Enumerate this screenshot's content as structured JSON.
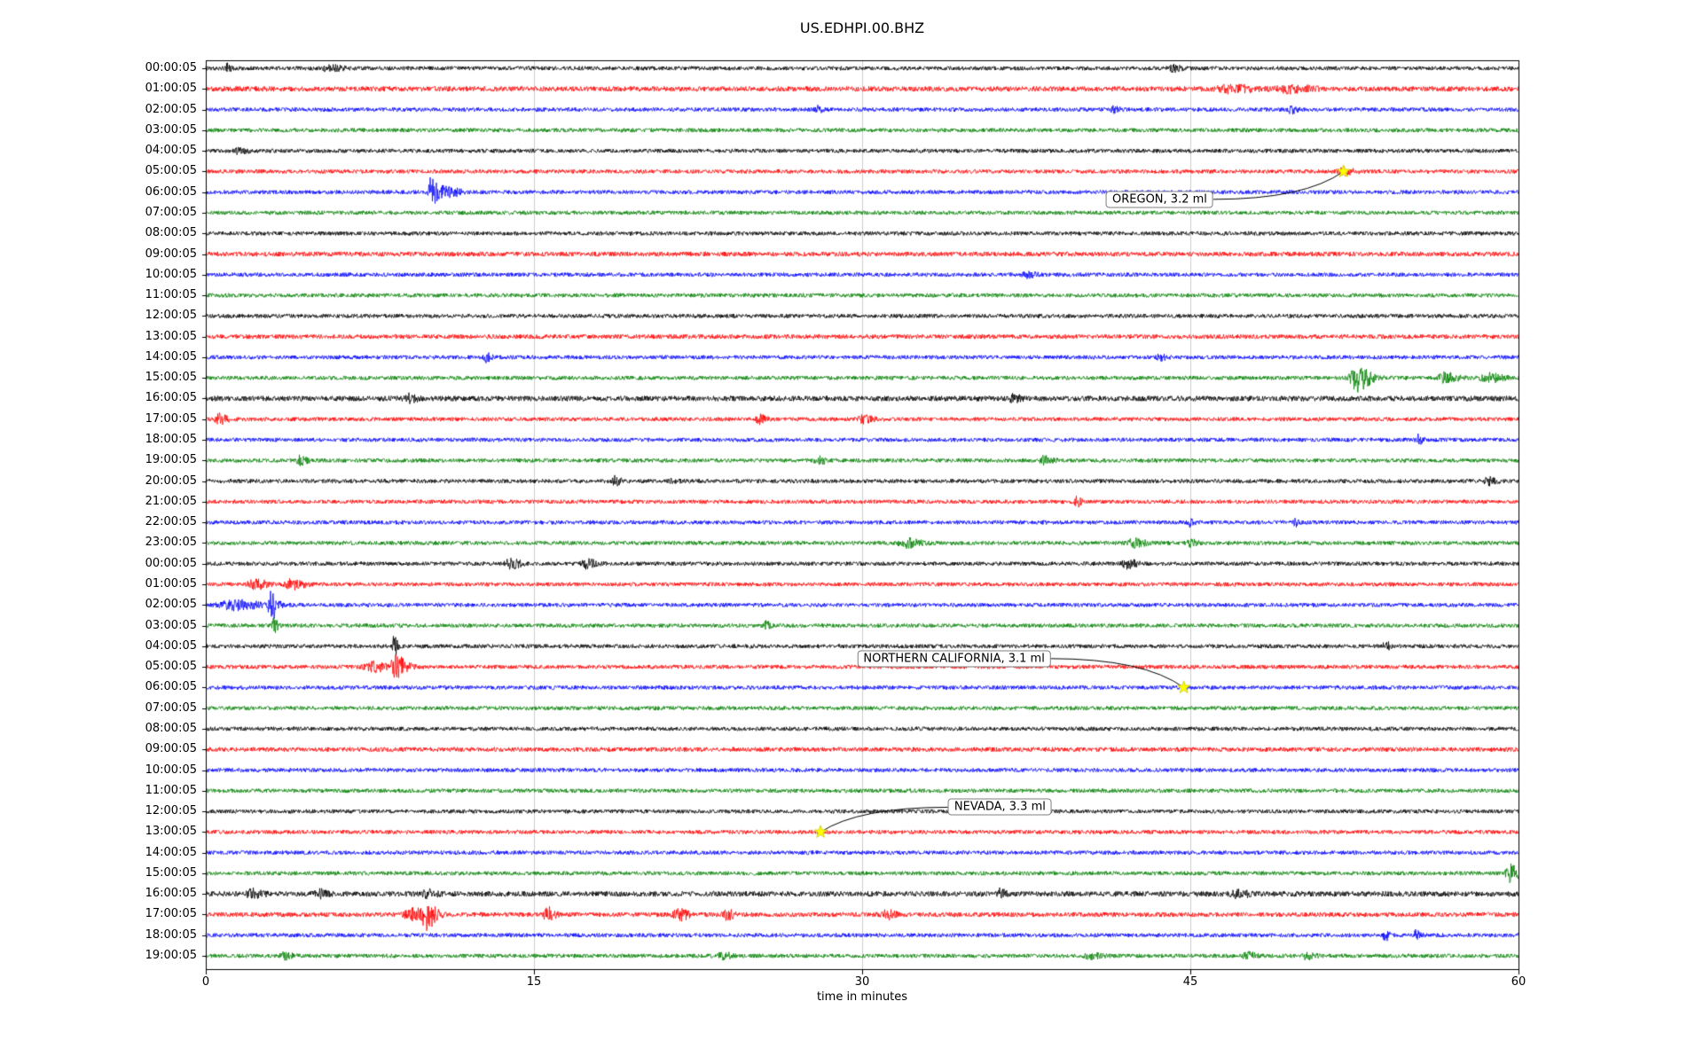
{
  "chart_data": {
    "type": "line",
    "subtype": "seismogram-helicorder-dayplot",
    "title": "US.EDHPI.00.BHZ",
    "xlabel": "time in minutes",
    "x_ticks": [
      0,
      15,
      30,
      45,
      60
    ],
    "x_range_minutes": [
      0,
      60
    ],
    "grid_minutes": [
      15,
      30,
      45
    ],
    "grid_color": "#cdcdcd",
    "background": "#ffffff",
    "colors": {
      "black": "#000000",
      "red": "#ff0000",
      "blue": "#0000ff",
      "green": "#008000"
    },
    "trace_color_cycle": [
      "black",
      "red",
      "blue",
      "green"
    ],
    "rows": [
      {
        "label": "00:00:05",
        "color": "black",
        "amp": 1.0,
        "events": [
          {
            "m": 1.0,
            "a": 7,
            "w": 0.12
          },
          {
            "m": 5.6,
            "a": 3,
            "w": 0.5
          },
          {
            "m": 44.2,
            "a": 3,
            "w": 0.3
          }
        ]
      },
      {
        "label": "01:00:05",
        "color": "red",
        "amp": 1.25,
        "events": [
          {
            "m": 46.8,
            "a": 4,
            "w": 0.8
          },
          {
            "m": 49.5,
            "a": 3.5,
            "w": 0.8
          }
        ]
      },
      {
        "label": "02:00:05",
        "color": "blue",
        "amp": 1.0,
        "events": [
          {
            "m": 27.9,
            "a": 3.5,
            "w": 0.2
          },
          {
            "m": 41.5,
            "a": 4,
            "w": 0.2
          },
          {
            "m": 49.6,
            "a": 3.5,
            "w": 0.2
          }
        ]
      },
      {
        "label": "03:00:05",
        "color": "green",
        "amp": 1.0,
        "events": []
      },
      {
        "label": "04:00:05",
        "color": "black",
        "amp": 1.0,
        "events": [
          {
            "m": 1.5,
            "a": 2.5,
            "w": 0.4
          }
        ]
      },
      {
        "label": "05:00:05",
        "color": "red",
        "amp": 1.0,
        "events": [
          {
            "m": 52.0,
            "a": 3.5,
            "w": 0.35
          }
        ]
      },
      {
        "label": "06:00:05",
        "color": "blue",
        "amp": 1.0,
        "events": [
          {
            "m": 10.3,
            "a": 17,
            "w": 0.2
          },
          {
            "m": 10.9,
            "a": 7,
            "w": 0.45
          }
        ]
      },
      {
        "label": "07:00:05",
        "color": "green",
        "amp": 1.0,
        "events": []
      },
      {
        "label": "08:00:05",
        "color": "black",
        "amp": 1.0,
        "events": []
      },
      {
        "label": "09:00:05",
        "color": "red",
        "amp": 1.15,
        "events": []
      },
      {
        "label": "10:00:05",
        "color": "blue",
        "amp": 1.0,
        "events": [
          {
            "m": 37.5,
            "a": 3,
            "w": 0.3
          }
        ]
      },
      {
        "label": "11:00:05",
        "color": "green",
        "amp": 1.0,
        "events": []
      },
      {
        "label": "12:00:05",
        "color": "black",
        "amp": 1.0,
        "events": []
      },
      {
        "label": "13:00:05",
        "color": "red",
        "amp": 1.1,
        "events": []
      },
      {
        "label": "14:00:05",
        "color": "blue",
        "amp": 1.0,
        "events": [
          {
            "m": 12.8,
            "a": 4.5,
            "w": 0.18
          },
          {
            "m": 43.6,
            "a": 3.5,
            "w": 0.2
          }
        ]
      },
      {
        "label": "15:00:05",
        "color": "green",
        "amp": 1.0,
        "events": [
          {
            "m": 52.6,
            "a": 15,
            "w": 0.45
          },
          {
            "m": 56.6,
            "a": 5,
            "w": 0.5
          },
          {
            "m": 58.6,
            "a": 6,
            "w": 0.5
          }
        ]
      },
      {
        "label": "16:00:05",
        "color": "black",
        "amp": 1.3,
        "events": [
          {
            "m": 9.3,
            "a": 4,
            "w": 0.3
          },
          {
            "m": 36.9,
            "a": 3.5,
            "w": 0.25
          }
        ]
      },
      {
        "label": "17:00:05",
        "color": "red",
        "amp": 1.0,
        "events": [
          {
            "m": 0.6,
            "a": 5,
            "w": 0.3
          },
          {
            "m": 25.3,
            "a": 4.5,
            "w": 0.25
          },
          {
            "m": 30.0,
            "a": 4.5,
            "w": 0.35
          }
        ]
      },
      {
        "label": "18:00:05",
        "color": "blue",
        "amp": 1.0,
        "events": [
          {
            "m": 55.4,
            "a": 6,
            "w": 0.15
          }
        ]
      },
      {
        "label": "19:00:05",
        "color": "green",
        "amp": 1.0,
        "events": [
          {
            "m": 4.3,
            "a": 4.5,
            "w": 0.25
          },
          {
            "m": 28.0,
            "a": 3.5,
            "w": 0.3
          },
          {
            "m": 38.3,
            "a": 4,
            "w": 0.3
          }
        ]
      },
      {
        "label": "20:00:05",
        "color": "black",
        "amp": 1.0,
        "events": [
          {
            "m": 18.7,
            "a": 4.5,
            "w": 0.2
          },
          {
            "m": 21.3,
            "a": 3.5,
            "w": 0.2
          },
          {
            "m": 58.6,
            "a": 3.5,
            "w": 0.3
          }
        ]
      },
      {
        "label": "21:00:05",
        "color": "red",
        "amp": 1.0,
        "events": [
          {
            "m": 39.8,
            "a": 5,
            "w": 0.15
          }
        ]
      },
      {
        "label": "22:00:05",
        "color": "blue",
        "amp": 1.0,
        "events": [
          {
            "m": 45.0,
            "a": 4.5,
            "w": 0.15
          },
          {
            "m": 49.8,
            "a": 3.5,
            "w": 0.15
          }
        ]
      },
      {
        "label": "23:00:05",
        "color": "green",
        "amp": 1.0,
        "events": [
          {
            "m": 32.0,
            "a": 4.5,
            "w": 0.5
          },
          {
            "m": 42.4,
            "a": 4.5,
            "w": 0.4
          },
          {
            "m": 45.0,
            "a": 3.5,
            "w": 0.25
          }
        ]
      },
      {
        "label": "00:00:05",
        "color": "black",
        "amp": 1.0,
        "events": [
          {
            "m": 13.9,
            "a": 5,
            "w": 0.35
          },
          {
            "m": 17.4,
            "a": 4.5,
            "w": 0.35
          },
          {
            "m": 42.1,
            "a": 4.5,
            "w": 0.35
          }
        ]
      },
      {
        "label": "01:00:05",
        "color": "red",
        "amp": 1.0,
        "events": [
          {
            "m": 2.2,
            "a": 5,
            "w": 0.45
          },
          {
            "m": 3.9,
            "a": 5,
            "w": 0.45
          }
        ]
      },
      {
        "label": "02:00:05",
        "color": "blue",
        "amp": 1.0,
        "events": [
          {
            "m": 1.2,
            "a": 5,
            "w": 0.9
          },
          {
            "m": 3.0,
            "a": 15,
            "w": 0.25
          }
        ]
      },
      {
        "label": "03:00:05",
        "color": "green",
        "amp": 1.0,
        "events": [
          {
            "m": 3.1,
            "a": 7,
            "w": 0.15
          },
          {
            "m": 25.6,
            "a": 4.5,
            "w": 0.15
          }
        ]
      },
      {
        "label": "04:00:05",
        "color": "black",
        "amp": 1.0,
        "events": [
          {
            "m": 8.6,
            "a": 13,
            "w": 0.12
          },
          {
            "m": 53.9,
            "a": 7,
            "w": 0.15
          }
        ]
      },
      {
        "label": "05:00:05",
        "color": "red",
        "amp": 1.0,
        "events": [
          {
            "m": 7.6,
            "a": 5,
            "w": 0.6
          },
          {
            "m": 8.7,
            "a": 11,
            "w": 0.4
          }
        ]
      },
      {
        "label": "06:00:05",
        "color": "blue",
        "amp": 1.0,
        "events": []
      },
      {
        "label": "07:00:05",
        "color": "green",
        "amp": 1.0,
        "events": []
      },
      {
        "label": "08:00:05",
        "color": "black",
        "amp": 1.0,
        "events": []
      },
      {
        "label": "09:00:05",
        "color": "red",
        "amp": 1.1,
        "events": []
      },
      {
        "label": "10:00:05",
        "color": "blue",
        "amp": 1.0,
        "events": []
      },
      {
        "label": "11:00:05",
        "color": "green",
        "amp": 1.0,
        "events": []
      },
      {
        "label": "12:00:05",
        "color": "black",
        "amp": 1.0,
        "events": []
      },
      {
        "label": "13:00:05",
        "color": "red",
        "amp": 1.0,
        "events": []
      },
      {
        "label": "14:00:05",
        "color": "blue",
        "amp": 1.0,
        "events": []
      },
      {
        "label": "15:00:05",
        "color": "green",
        "amp": 1.0,
        "events": [
          {
            "m": 59.6,
            "a": 9,
            "w": 0.3
          }
        ]
      },
      {
        "label": "16:00:05",
        "color": "black",
        "amp": 1.3,
        "events": [
          {
            "m": 2.1,
            "a": 4.5,
            "w": 0.35
          },
          {
            "m": 5.1,
            "a": 4.5,
            "w": 0.3
          },
          {
            "m": 10.1,
            "a": 3.5,
            "w": 0.3
          },
          {
            "m": 36.3,
            "a": 4.5,
            "w": 0.2
          },
          {
            "m": 47.1,
            "a": 3.5,
            "w": 0.4
          }
        ]
      },
      {
        "label": "17:00:05",
        "color": "red",
        "amp": 1.15,
        "events": [
          {
            "m": 9.4,
            "a": 7,
            "w": 0.5
          },
          {
            "m": 10.1,
            "a": 13,
            "w": 0.35
          },
          {
            "m": 15.6,
            "a": 8,
            "w": 0.25
          },
          {
            "m": 21.6,
            "a": 6,
            "w": 0.35
          },
          {
            "m": 23.8,
            "a": 5,
            "w": 0.25
          },
          {
            "m": 31.1,
            "a": 4.5,
            "w": 0.3
          }
        ]
      },
      {
        "label": "18:00:05",
        "color": "blue",
        "amp": 1.0,
        "events": [
          {
            "m": 53.9,
            "a": 6,
            "w": 0.15
          },
          {
            "m": 55.3,
            "a": 4.5,
            "w": 0.15
          }
        ]
      },
      {
        "label": "19:00:05",
        "color": "green",
        "amp": 1.0,
        "events": [
          {
            "m": 3.6,
            "a": 3.5,
            "w": 0.3
          },
          {
            "m": 23.6,
            "a": 3.5,
            "w": 0.3
          },
          {
            "m": 40.4,
            "a": 3.5,
            "w": 0.35
          },
          {
            "m": 47.6,
            "a": 3.5,
            "w": 0.3
          },
          {
            "m": 50.3,
            "a": 3.5,
            "w": 0.3
          }
        ]
      }
    ],
    "annotations": [
      {
        "label": "OREGON, 3.2 ml",
        "star": {
          "row": 5,
          "minute": 52.0
        },
        "label_pos": {
          "row": 6.35,
          "minute": 43.6
        },
        "star_color": "#ffff00"
      },
      {
        "label": "NORTHERN CALIFORNIA, 3.1 ml",
        "star": {
          "row": 30,
          "minute": 44.7
        },
        "label_pos": {
          "row": 28.6,
          "minute": 34.2
        },
        "star_color": "#ffff00"
      },
      {
        "label": "NEVADA, 3.3 ml",
        "star": {
          "row": 37,
          "minute": 28.1
        },
        "label_pos": {
          "row": 35.8,
          "minute": 36.3
        },
        "star_color": "#ffff00"
      }
    ]
  }
}
